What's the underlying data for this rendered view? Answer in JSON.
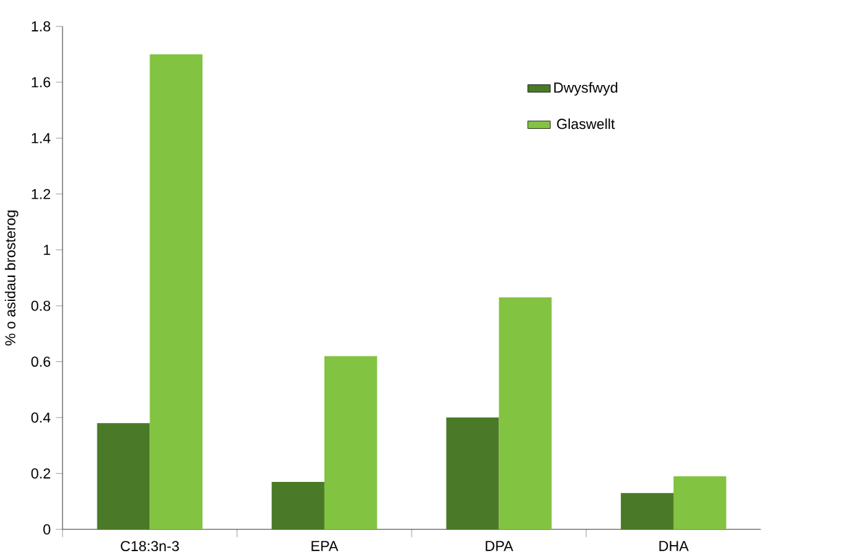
{
  "chart_data": {
    "type": "bar",
    "ylabel": "% o asidau brosterog",
    "categories": [
      "C18:3n-3",
      "EPA",
      "DPA",
      "DHA"
    ],
    "series": [
      {
        "name": "Dwysfwyd",
        "color": "#4a7a28",
        "values": [
          0.38,
          0.17,
          0.4,
          0.13
        ]
      },
      {
        "name": "Glaswellt",
        "color": "#82c341",
        "values": [
          1.7,
          0.62,
          0.83,
          0.19
        ]
      }
    ],
    "ylim": [
      0,
      1.8
    ],
    "yticks": [
      0,
      0.2,
      0.4,
      0.6,
      0.8,
      1,
      1.2,
      1.4,
      1.6,
      1.8
    ],
    "grid": false,
    "legend": "top right"
  }
}
